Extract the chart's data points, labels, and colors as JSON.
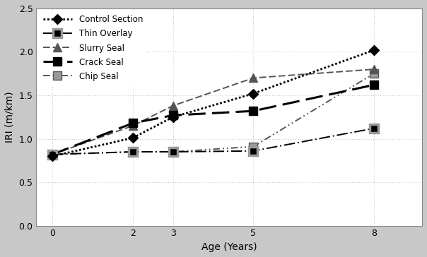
{
  "age": [
    0,
    2,
    3,
    5,
    8
  ],
  "control_section": [
    0.8,
    1.01,
    1.25,
    1.52,
    2.02
  ],
  "thin_overlay": [
    0.82,
    0.85,
    0.85,
    0.86,
    1.12
  ],
  "slurry_seal": [
    0.82,
    1.15,
    1.38,
    1.7,
    1.8
  ],
  "crack_seal": [
    0.82,
    1.18,
    1.27,
    1.32,
    1.62
  ],
  "chip_seal": [
    0.82,
    0.85,
    0.85,
    0.91,
    1.75
  ],
  "xlabel": "Age (Years)",
  "ylabel": "IRI (m/km)",
  "ylim": [
    0,
    2.5
  ],
  "xlim": [
    -0.4,
    9.2
  ],
  "xticks": [
    0,
    2,
    3,
    5,
    8
  ],
  "yticks": [
    0,
    0.5,
    1.0,
    1.5,
    2.0,
    2.5
  ],
  "legend_labels": [
    "Control Section",
    "Thin Overlay",
    "Slurry Seal",
    "Crack Seal",
    "Chip Seal"
  ],
  "bg_color": "#c8c8c8",
  "plot_bg_color": "#ffffff"
}
